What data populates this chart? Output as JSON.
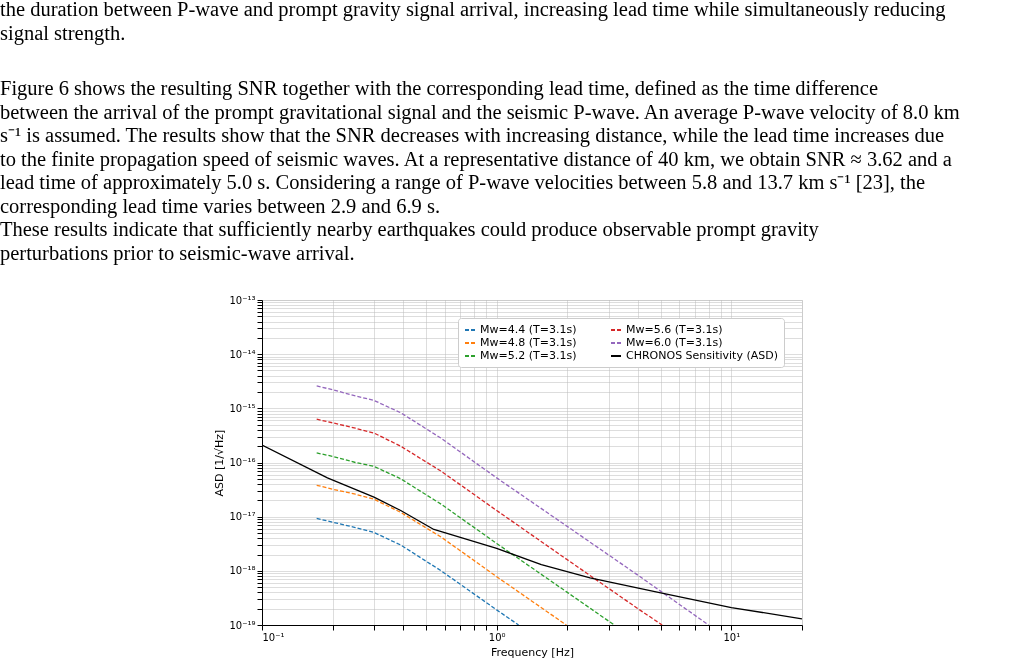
{
  "chart_data": {
    "type": "line",
    "annotations": [
      "the duration between P-wave and prompt gravity signal arrival, increasing lead time while simultaneously reducing signal strength.",
      "Figure 6 shows the resulting SNR together with the corresponding lead time, defined as the time difference between the arrival of the prompt gravitational signal and the seismic P-wave. An average P-wave velocity of 8.0 km s⁻¹ is assumed. The results show that the SNR decreases with increasing distance, while the lead time increases due to the finite propagation speed of seismic waves. At a representative distance of 40 km, we obtain SNR ≈ 3.62 and a lead time of approximately 5.0 s. Considering a range of P-wave velocities between 5.8 and 13.7 km s⁻¹ [23], the corresponding lead time varies between 2.9 and 6.9 s.",
      "These results indicate that sufficiently nearby earthquakes could produce observable prompt gravity perturbations prior to seismic-wave arrival."
    ],
    "xlabel": "Frequency [Hz]",
    "ylabel": "ASD [1/√Hz]",
    "log": "xy",
    "grid": true,
    "legend": "top right",
    "marker": "none",
    "xlim": [
      0.1,
      20
    ],
    "ylim": [
      1e-19,
      1e-13
    ],
    "xticks": [
      {
        "value": 0.1,
        "label": "10⁻¹"
      },
      {
        "value": 0.2,
        "label": null
      },
      {
        "value": 0.3,
        "label": null
      },
      {
        "value": 0.4,
        "label": null
      },
      {
        "value": 0.5,
        "label": null
      },
      {
        "value": 0.6,
        "label": null
      },
      {
        "value": 0.7,
        "label": null
      },
      {
        "value": 0.8,
        "label": null
      },
      {
        "value": 0.9,
        "label": null
      },
      {
        "value": 1,
        "label": "10⁰"
      },
      {
        "value": 2,
        "label": null
      },
      {
        "value": 3,
        "label": null
      },
      {
        "value": 4,
        "label": null
      },
      {
        "value": 5,
        "label": null
      },
      {
        "value": 6,
        "label": null
      },
      {
        "value": 7,
        "label": null
      },
      {
        "value": 8,
        "label": null
      },
      {
        "value": 9,
        "label": null
      },
      {
        "value": 10,
        "label": "10¹"
      },
      {
        "value": 20,
        "label": null
      }
    ],
    "yticks": [
      {
        "value": 1e-19,
        "label": "10⁻¹⁹"
      },
      {
        "value": 2e-19,
        "label": null
      },
      {
        "value": 3e-19,
        "label": null
      },
      {
        "value": 4e-19,
        "label": null
      },
      {
        "value": 5e-19,
        "label": null
      },
      {
        "value": 6e-19,
        "label": null
      },
      {
        "value": 7e-19,
        "label": null
      },
      {
        "value": 8e-19,
        "label": null
      },
      {
        "value": 9e-19,
        "label": null
      },
      {
        "value": 1e-18,
        "label": "10⁻¹⁸"
      },
      {
        "value": 2e-18,
        "label": null
      },
      {
        "value": 3e-18,
        "label": null
      },
      {
        "value": 4e-18,
        "label": null
      },
      {
        "value": 5e-18,
        "label": null
      },
      {
        "value": 6e-18,
        "label": null
      },
      {
        "value": 7e-18,
        "label": null
      },
      {
        "value": 8e-18,
        "label": null
      },
      {
        "value": 9e-18,
        "label": null
      },
      {
        "value": 1e-17,
        "label": "10⁻¹⁷"
      },
      {
        "value": 2e-17,
        "label": null
      },
      {
        "value": 3e-17,
        "label": null
      },
      {
        "value": 4e-17,
        "label": null
      },
      {
        "value": 5e-17,
        "label": null
      },
      {
        "value": 6e-17,
        "label": null
      },
      {
        "value": 7e-17,
        "label": null
      },
      {
        "value": 8e-17,
        "label": null
      },
      {
        "value": 9e-17,
        "label": null
      },
      {
        "value": 1e-16,
        "label": "10⁻¹⁶"
      },
      {
        "value": 2e-16,
        "label": null
      },
      {
        "value": 3e-16,
        "label": null
      },
      {
        "value": 4e-16,
        "label": null
      },
      {
        "value": 5e-16,
        "label": null
      },
      {
        "value": 6e-16,
        "label": null
      },
      {
        "value": 7e-16,
        "label": null
      },
      {
        "value": 8e-16,
        "label": null
      },
      {
        "value": 9e-16,
        "label": null
      },
      {
        "value": 1e-15,
        "label": "10⁻¹⁵"
      },
      {
        "value": 2e-15,
        "label": null
      },
      {
        "value": 3e-15,
        "label": null
      },
      {
        "value": 4e-15,
        "label": null
      },
      {
        "value": 5e-15,
        "label": null
      },
      {
        "value": 6e-15,
        "label": null
      },
      {
        "value": 7e-15,
        "label": null
      },
      {
        "value": 8e-15,
        "label": null
      },
      {
        "value": 9e-15,
        "label": null
      },
      {
        "value": 1e-14,
        "label": "10⁻¹⁴"
      },
      {
        "value": 2e-14,
        "label": null
      },
      {
        "value": 3e-14,
        "label": null
      },
      {
        "value": 4e-14,
        "label": null
      },
      {
        "value": 5e-14,
        "label": null
      },
      {
        "value": 6e-14,
        "label": null
      },
      {
        "value": 7e-14,
        "label": null
      },
      {
        "value": 8e-14,
        "label": null
      },
      {
        "value": 9e-14,
        "label": null
      },
      {
        "value": 1e-13,
        "label": "10⁻¹³"
      }
    ],
    "series": [
      {
        "name": "Mw=4.4 (T=3.1s)",
        "color": "#1f77b4",
        "line_style": "dashed",
        "x": [
          0.171,
          0.2,
          0.25,
          0.3,
          0.39,
          0.58,
          1.0,
          1.24
        ],
        "values": [
          9.3e-18,
          7.9e-18,
          6.3e-18,
          5.1e-18,
          3e-18,
          1e-18,
          1.9e-19,
          1e-19
        ]
      },
      {
        "name": "Mw=4.8 (T=3.1s)",
        "color": "#ff7f0e",
        "line_style": "dashed",
        "x": [
          0.171,
          0.2,
          0.25,
          0.3,
          0.39,
          0.58,
          1.0,
          1.98
        ],
        "values": [
          3.8e-17,
          3.2e-17,
          2.6e-17,
          2.1e-17,
          1.2e-17,
          4.2e-18,
          7.8e-19,
          1e-19
        ]
      },
      {
        "name": "Mw=5.2 (T=3.1s)",
        "color": "#2ca02c",
        "line_style": "dashed",
        "x": [
          0.171,
          0.2,
          0.25,
          0.3,
          0.39,
          0.58,
          1.0,
          2.0,
          3.17
        ],
        "values": [
          1.5e-16,
          1.3e-16,
          1e-16,
          8.5e-17,
          5e-17,
          1.7e-17,
          3.2e-18,
          4e-19,
          1e-19
        ]
      },
      {
        "name": "Mw=5.6 (T=3.1s)",
        "color": "#d62728",
        "line_style": "dashed",
        "x": [
          0.171,
          0.2,
          0.25,
          0.3,
          0.39,
          0.58,
          1.0,
          2.0,
          4.0,
          5.07
        ],
        "values": [
          6.3e-16,
          5.4e-16,
          4.3e-16,
          3.5e-16,
          2e-16,
          6.9e-17,
          1.3e-17,
          1.6e-18,
          2e-19,
          1e-19
        ]
      },
      {
        "name": "Mw=6.0 (T=3.1s)",
        "color": "#9467bd",
        "line_style": "dashed",
        "x": [
          0.171,
          0.2,
          0.25,
          0.3,
          0.39,
          0.58,
          1.0,
          2.0,
          4.0,
          8.0
        ],
        "values": [
          2.6e-15,
          2.2e-15,
          1.7e-15,
          1.4e-15,
          8.3e-16,
          2.8e-16,
          5.2e-17,
          6.6e-18,
          8.3e-19,
          1e-19
        ]
      },
      {
        "name": "CHRONOS Sensitivity (ASD)",
        "color": "#000000",
        "line_style": "solid",
        "x": [
          0.1,
          0.19,
          0.3,
          0.39,
          0.54,
          1.0,
          1.55,
          2.5,
          5.0,
          10.0,
          20.0
        ],
        "values": [
          2.1e-16,
          5.2e-17,
          2.3e-17,
          1.3e-17,
          5.8e-18,
          2.6e-18,
          1.3e-18,
          7.4e-19,
          3.9e-19,
          2.1e-19,
          1.3e-19
        ]
      }
    ]
  }
}
